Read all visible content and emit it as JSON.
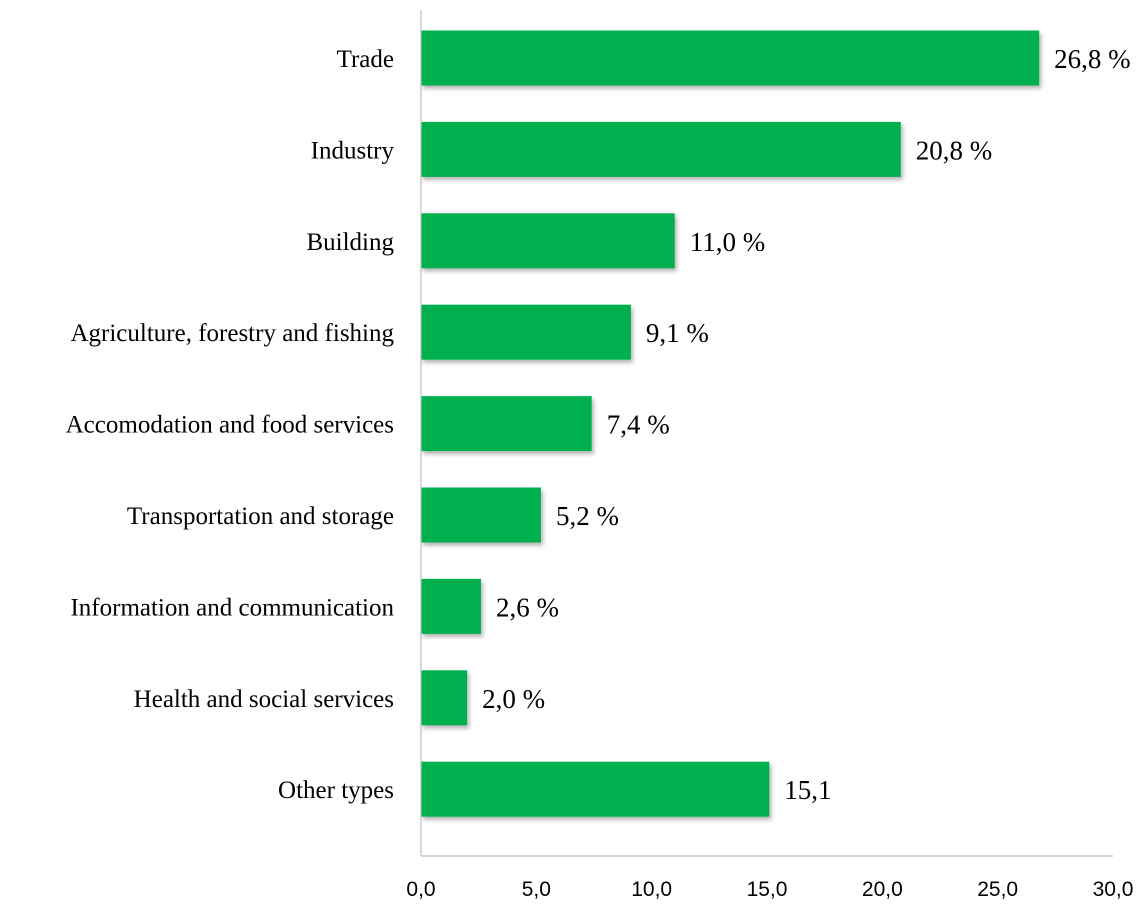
{
  "chart_data": {
    "type": "bar",
    "orientation": "horizontal",
    "categories": [
      "Trade",
      "Industry",
      "Building ",
      "Agriculture, forestry and fishing",
      "Accomodation and food services",
      "Transportation and storage ",
      "Information and communication",
      "Health and social services ",
      "Other types"
    ],
    "values": [
      26.8,
      20.8,
      11.0,
      9.1,
      7.4,
      5.2,
      2.6,
      2.0,
      15.1
    ],
    "data_labels": [
      "26,8 %",
      "20,8 %",
      "11,0 %",
      "9,1 %",
      "7,4 %",
      "5,2 %",
      "2,6 %",
      "2,0 %",
      "15,1"
    ],
    "xlim": [
      0,
      30
    ],
    "x_ticks": [
      0,
      5,
      10,
      15,
      20,
      25,
      30
    ],
    "x_tick_labels": [
      "0,0",
      "5,0",
      "10,0",
      "15,0",
      "20,0",
      "25,0",
      "30,0"
    ],
    "title": "",
    "xlabel": "",
    "ylabel": "",
    "grid": false,
    "legend": "none",
    "bar_color": "#00b050"
  }
}
